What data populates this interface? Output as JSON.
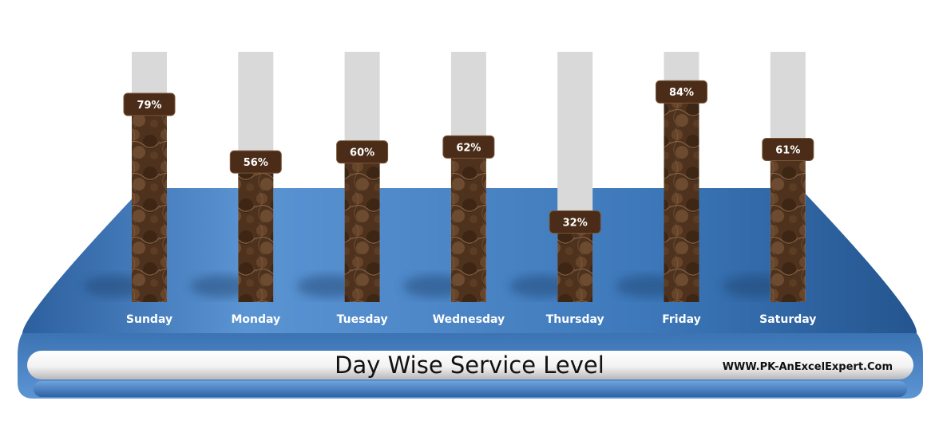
{
  "chart_data": {
    "type": "bar",
    "title": "Day Wise Service Level",
    "categories": [
      "Sunday",
      "Monday",
      "Tuesday",
      "Wednesday",
      "Thursday",
      "Friday",
      "Saturday"
    ],
    "values": [
      79,
      56,
      60,
      62,
      32,
      84,
      61
    ],
    "value_suffix": "%",
    "ylim": [
      0,
      100
    ],
    "grid": false,
    "legend": "none"
  },
  "footer": {
    "website": "WWW.PK-AnExcelExpert.Com"
  },
  "colors": {
    "platform_top": "#3f78b8",
    "platform_edge": "#2f5f99",
    "track": "#d9d9d9",
    "bar": "#5a3a22",
    "label_bg": "#4a2c18"
  }
}
